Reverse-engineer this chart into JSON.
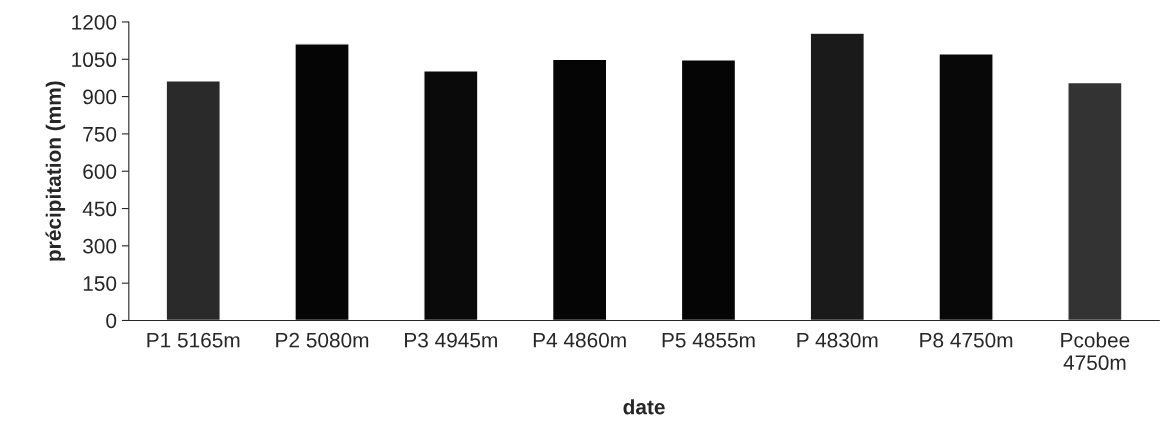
{
  "chart_data": {
    "type": "bar",
    "xlabel": "date",
    "ylabel": "précipitation (mm)",
    "categories": [
      "P1 5165m",
      "P2 5080m",
      "P3 4945m",
      "P4 4860m",
      "P5 4855m",
      "P 4830m",
      "P8 4750m",
      "Pcobee\n4750m"
    ],
    "values": [
      963,
      1112,
      1004,
      1050,
      1048,
      1155,
      1072,
      956
    ],
    "colors": [
      "#2a2a2a",
      "#050505",
      "#0a0a0a",
      "#050505",
      "#050505",
      "#1a1a1a",
      "#080808",
      "#333333"
    ],
    "ylim": [
      0,
      1200
    ],
    "yticks": [
      0,
      150,
      300,
      450,
      600,
      750,
      900,
      1050,
      1200
    ],
    "grid": false,
    "legend": false
  }
}
